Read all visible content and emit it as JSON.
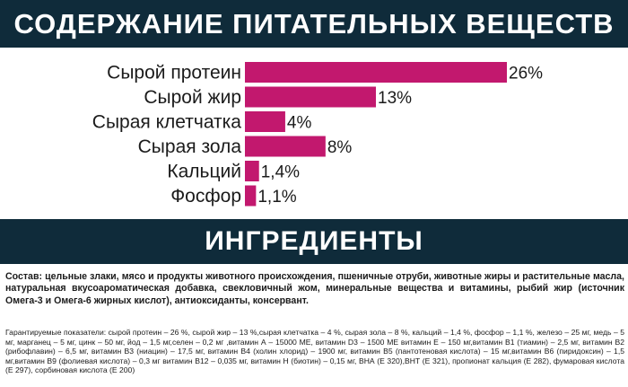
{
  "header": {
    "title": "СОДЕРЖАНИЕ ПИТАТЕЛЬНЫХ ВЕЩЕСТВ"
  },
  "chart_data": {
    "type": "bar",
    "orientation": "horizontal",
    "categories": [
      "Сырой протеин",
      "Сырой жир",
      "Сырая клетчатка",
      "Сырая зола",
      "Кальций",
      "Фосфор"
    ],
    "values": [
      26,
      13,
      4,
      8,
      1.4,
      1.1
    ],
    "value_labels": [
      "26%",
      "13%",
      "4%",
      "8%",
      "1,4%",
      "1,1%"
    ],
    "bar_color": "#c2186e",
    "xlim": [
      0,
      26
    ],
    "grid": false,
    "title": "",
    "xlabel": "",
    "ylabel": ""
  },
  "ingredients": {
    "title": "ИНГРЕДИЕНТЫ",
    "composition": "Состав: цельные злаки, мясо и продукты животного происхождения, пшеничные отруби, животные жиры и растительные масла, натуральная вкусоароматическая добавка, свекловичный жом, минеральные вещества и витамины, рыбий жир (источник Омега-3 и Омега-6 жирных кислот), антиоксиданты, консервант.",
    "guaranteed": "Гарантируемые показатели: сырой протеин – 26 %, сырой жир – 13 %,сырая клетчатка – 4 %, сырая зола – 8 %, кальций – 1,4 %, фосфор – 1,1 %, железо – 25 мг, медь – 5 мг, марганец – 5 мг, цинк – 50 мг, йод – 1,5 мг,селен – 0,2 мг ,витамин А – 15000 МЕ, витамин D3 – 1500 МЕ витамин Е – 150 мг,витамин В1 (тиамин) – 2,5 мг, витамин В2 (рибофлавин) – 6,5 мг, витамин В3 (ниацин) – 17,5 мг, витамин В4 (холин хлорид) – 1900 мг, витамин В5 (пантотеновая кислота) – 15 мг,витамин В6 (пиридоксин) – 1,5 мг,витамин В9 (фолиевая кислота) – 0,3 мг витамин В12 – 0,035 мг, витамин Н (биотин) – 0,15 мг, ВНА (Е 320),ВНТ (Е 321), пропионат кальция (Е 282), фумаровая кислота (Е 297), сорбиновая кислота (Е 200)"
  }
}
